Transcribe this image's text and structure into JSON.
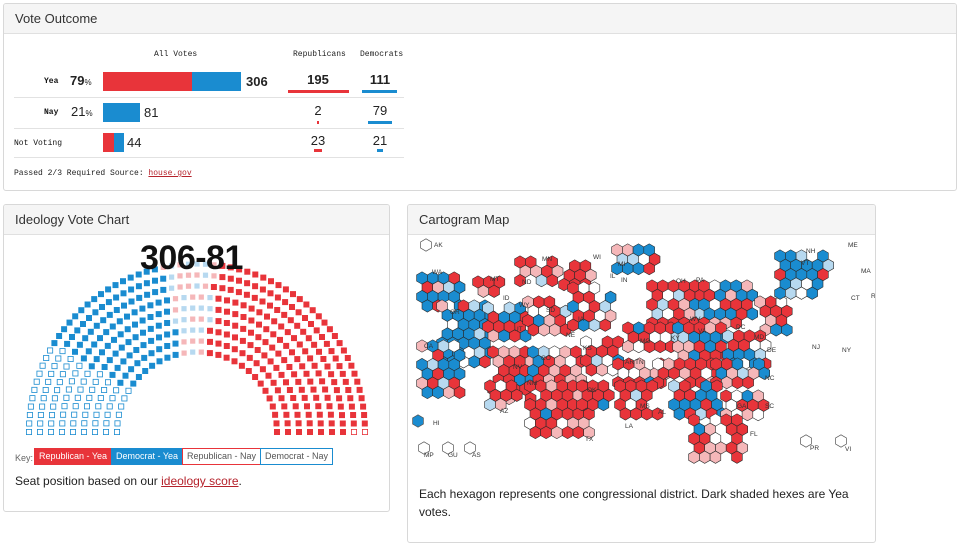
{
  "vote_outcome": {
    "title": "Vote Outcome",
    "columns": {
      "all": "All Votes",
      "rep": "Republicans",
      "dem": "Democrats"
    },
    "rows": [
      {
        "label": "Yea",
        "pct": "79",
        "pct_suffix": "%",
        "total": "306",
        "rep": "195",
        "dem": "111",
        "rep_share": 0.637,
        "dem_share": 0.363
      },
      {
        "label": "Nay",
        "pct": "21",
        "pct_suffix": "%",
        "total": "81",
        "rep": "2",
        "dem": "79",
        "rep_share": 0.025,
        "dem_share": 0.975
      },
      {
        "label": "Not Voting",
        "total": "44",
        "rep": "23",
        "dem": "21",
        "rep_share": 0.523,
        "dem_share": 0.477
      }
    ],
    "footnote": {
      "text": "Passed  2/3 Required  Source: ",
      "link": "house.gov"
    }
  },
  "ideology": {
    "title": "Ideology Vote Chart",
    "score": "306-81",
    "key_label": "Key:",
    "legend": [
      "Republican - Yea",
      "Democrat - Yea",
      "Republican - Nay",
      "Democrat - Nay"
    ],
    "note_prefix": "Seat position based on our ",
    "note_link": "ideology score",
    "note_suffix": "."
  },
  "cartogram": {
    "title": "Cartogram Map",
    "states": [
      "AK",
      "ME",
      "NH",
      "VT",
      "MA",
      "RI",
      "CT",
      "WA",
      "MT",
      "ND",
      "MN",
      "WI",
      "MI",
      "IL",
      "IN",
      "OH",
      "PA",
      "NY",
      "NJ",
      "DE",
      "MD",
      "DC",
      "WV",
      "VA",
      "KY",
      "TN",
      "NC",
      "SC",
      "GA",
      "FL",
      "AL",
      "MS",
      "LA",
      "AR",
      "MO",
      "IA",
      "NE",
      "SD",
      "WY",
      "ID",
      "OR",
      "CA",
      "NV",
      "UT",
      "CO",
      "AZ",
      "NM",
      "KS",
      "OK",
      "TX",
      "HI",
      "MP",
      "GU",
      "AS",
      "PR",
      "VI"
    ],
    "note": "Each hexagon represents one congressional district. Dark shaded hexes are Yea votes."
  },
  "colors": {
    "republican": "#e8343a",
    "democrat": "#1a8cd0",
    "republican_light": "#f5b7b9",
    "democrat_light": "#b7d9f0"
  }
}
